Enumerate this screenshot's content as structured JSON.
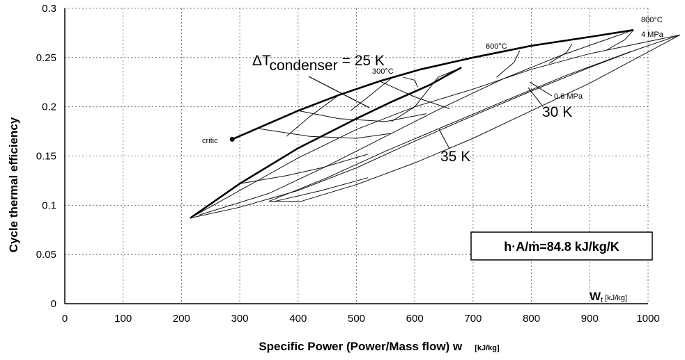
{
  "chart_data": {
    "type": "line",
    "title": "",
    "xlabel": "Specific Power (Power/Mass flow) w",
    "xlabel_unit": "[kJ/kg]",
    "ylabel": "Cycle thermal efficiency",
    "inner_xlabel_symbol": "W",
    "inner_xlabel_sub": "t",
    "inner_xlabel_unit": "[kJ/kg]",
    "xlim": [
      0,
      1000
    ],
    "ylim": [
      0,
      0.3
    ],
    "xticks": [
      "0",
      "100",
      "200",
      "300",
      "400",
      "500",
      "600",
      "700",
      "800",
      "900",
      "1000"
    ],
    "yticks": [
      "0",
      "0.05",
      "0.1",
      "0.15",
      "0.2",
      "0.25",
      "0.3"
    ],
    "grid": true,
    "annotations": {
      "critic": "critic",
      "delta_t_symbol": "ΔT",
      "delta_t_sub": "condenser",
      "delta_t_value": "= 25 K",
      "t300": "300°C",
      "t600": "600°C",
      "t800": "800°C",
      "p4": "4 MPa",
      "p06": "0.6 MPa",
      "k30": "30 K",
      "k35": "35 K",
      "box": "h·A/ṁ=84.8 kJ/kg/K"
    },
    "critic_point": [
      287,
      0.167
    ],
    "series": [
      {
        "values": [
          [
            287,
            0.167
          ],
          [
            330,
            0.178
          ],
          [
            400,
            0.196
          ],
          [
            470,
            0.212
          ],
          [
            540,
            0.226
          ],
          [
            610,
            0.238
          ],
          [
            700,
            0.25
          ],
          [
            800,
            0.262
          ],
          [
            900,
            0.271
          ],
          [
            975,
            0.278
          ]
        ]
      },
      {
        "values": [
          [
            215,
            0.087
          ],
          [
            300,
            0.122
          ],
          [
            400,
            0.158
          ],
          [
            500,
            0.188
          ],
          [
            560,
            0.205
          ],
          [
            625,
            0.222
          ],
          [
            680,
            0.24
          ]
        ]
      },
      {
        "values": [
          [
            215,
            0.087
          ],
          [
            300,
            0.098
          ],
          [
            400,
            0.115
          ],
          [
            500,
            0.138
          ],
          [
            600,
            0.165
          ],
          [
            700,
            0.191
          ],
          [
            800,
            0.216
          ],
          [
            900,
            0.24
          ],
          [
            980,
            0.258
          ],
          [
            1055,
            0.273
          ]
        ]
      },
      {
        "values": [
          [
            230,
            0.09
          ],
          [
            350,
            0.112
          ],
          [
            450,
            0.14
          ],
          [
            550,
            0.17
          ],
          [
            650,
            0.2
          ],
          [
            750,
            0.228
          ],
          [
            850,
            0.252
          ],
          [
            975,
            0.278
          ]
        ]
      },
      {
        "values": [
          [
            215,
            0.087
          ],
          [
            300,
            0.115
          ],
          [
            400,
            0.148
          ],
          [
            500,
            0.177
          ],
          [
            600,
            0.2
          ],
          [
            700,
            0.218
          ],
          [
            800,
            0.238
          ],
          [
            900,
            0.254
          ],
          [
            1055,
            0.273
          ]
        ]
      },
      {
        "values": [
          [
            350,
            0.104
          ],
          [
            450,
            0.128
          ],
          [
            550,
            0.155
          ],
          [
            650,
            0.18
          ],
          [
            750,
            0.205
          ],
          [
            860,
            0.232
          ],
          [
            970,
            0.256
          ]
        ]
      },
      {
        "values": [
          [
            405,
            0.104
          ],
          [
            500,
            0.121
          ],
          [
            600,
            0.143
          ],
          [
            700,
            0.168
          ],
          [
            800,
            0.196
          ],
          [
            900,
            0.224
          ],
          [
            1055,
            0.273
          ]
        ]
      },
      {
        "values": [
          [
            580,
            0.23
          ],
          [
            600,
            0.227
          ],
          [
            605,
            0.22
          ]
        ]
      },
      {
        "values": [
          [
            680,
            0.24
          ],
          [
            640,
            0.23
          ],
          [
            600,
            0.2
          ],
          [
            560,
            0.185
          ]
        ]
      },
      {
        "values": [
          [
            780,
            0.257
          ],
          [
            770,
            0.245
          ],
          [
            740,
            0.23
          ]
        ]
      },
      {
        "values": [
          [
            870,
            0.264
          ],
          [
            860,
            0.255
          ],
          [
            830,
            0.244
          ]
        ]
      },
      {
        "values": [
          [
            975,
            0.278
          ],
          [
            960,
            0.268
          ],
          [
            930,
            0.258
          ]
        ]
      },
      {
        "values": [
          [
            330,
            0.178
          ],
          [
            420,
            0.17
          ],
          [
            500,
            0.168
          ],
          [
            560,
            0.173
          ]
        ]
      },
      {
        "values": [
          [
            400,
            0.196
          ],
          [
            470,
            0.188
          ],
          [
            550,
            0.185
          ],
          [
            620,
            0.193
          ]
        ]
      },
      {
        "values": [
          [
            300,
            0.122
          ],
          [
            380,
            0.13
          ],
          [
            440,
            0.138
          ],
          [
            520,
            0.152
          ]
        ]
      },
      {
        "values": [
          [
            350,
            0.104
          ],
          [
            400,
            0.104
          ],
          [
            405,
            0.104
          ]
        ]
      },
      {
        "values": [
          [
            360,
            0.104
          ],
          [
            440,
            0.115
          ],
          [
            520,
            0.128
          ]
        ]
      },
      {
        "values": [
          [
            540,
            0.226
          ],
          [
            600,
            0.21
          ],
          [
            660,
            0.198
          ]
        ]
      },
      {
        "values": [
          [
            560,
            0.229
          ],
          [
            520,
            0.21
          ],
          [
            490,
            0.196
          ]
        ]
      },
      {
        "values": [
          [
            470,
            0.212
          ],
          [
            420,
            0.19
          ],
          [
            380,
            0.17
          ]
        ]
      }
    ]
  }
}
